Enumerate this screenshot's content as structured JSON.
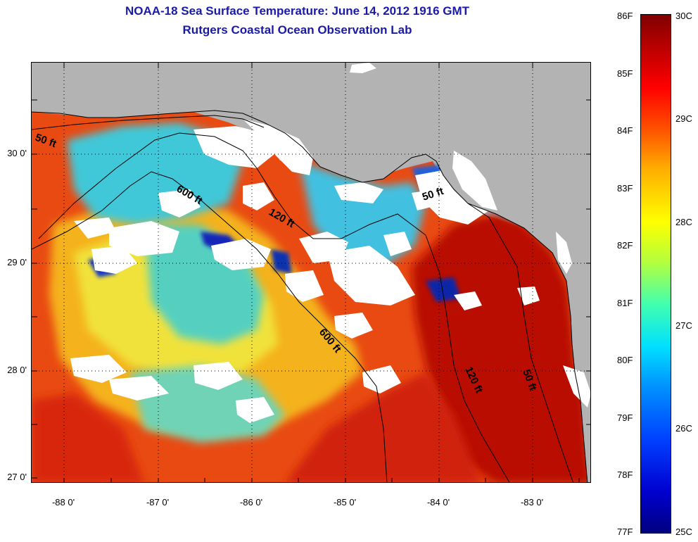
{
  "header": {
    "title": "NOAA-18 Sea Surface Temperature:  June 14, 2012 1916 GMT",
    "subtitle": "Rutgers Coastal Ocean Observation Lab"
  },
  "map": {
    "latitude_labels": [
      "30 0'",
      "29 0'",
      "28 0'",
      "27 0'"
    ],
    "longitude_labels": [
      "-88 0'",
      "-87 0'",
      "-86 0'",
      "-85 0'",
      "-84 0'",
      "-83 0'"
    ],
    "contour_labels": [
      "50 ft",
      "600 ft",
      "120 ft",
      "50 ft",
      "600 ft",
      "120 ft",
      "50 ft"
    ]
  },
  "colorbar": {
    "fahrenheit_labels": [
      "86F",
      "85F",
      "84F",
      "83F",
      "82F",
      "81F",
      "80F",
      "79F",
      "78F",
      "77F"
    ],
    "celsius_labels": [
      "30C",
      "29C",
      "28C",
      "27C",
      "26C",
      "25C"
    ]
  },
  "colors": {
    "land": "#b3b3b3",
    "title": "#1a1aa6",
    "cloud": "#ffffff",
    "warm": "#cc1a00",
    "cool": "#30b8f0"
  }
}
